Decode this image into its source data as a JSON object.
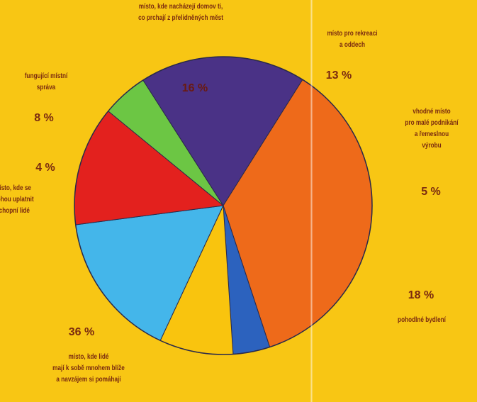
{
  "chart_data": {
    "type": "pie",
    "slices": [
      {
        "value": 16,
        "pct_label": "16 %",
        "color": "#44b6ea",
        "label": [
          "místo, kde nacházejí domov ti,",
          "co prchají z přelidněných měst"
        ]
      },
      {
        "value": 13,
        "pct_label": "13 %",
        "color": "#e3211e",
        "label": [
          "místo pro rekreaci",
          "a oddech"
        ]
      },
      {
        "value": 5,
        "pct_label": "5 %",
        "color": "#6cc644",
        "label": [
          "vhodné místo",
          "pro malé podnikání",
          "a řemeslnou",
          "výrobu"
        ]
      },
      {
        "value": 18,
        "pct_label": "18 %",
        "color": "#4a3286",
        "label": [
          "pohodlné bydlení"
        ]
      },
      {
        "value": 36,
        "pct_label": "36 %",
        "color": "#ee6a1a",
        "label": [
          "místo, kde lidé",
          "mají k sobě mnohem blíže",
          "a navzájem si pomáhají"
        ]
      },
      {
        "value": 4,
        "pct_label": "4 %",
        "color": "#2c62be",
        "label": [
          "místo, kde se",
          "mohou uplatnit",
          "schopní lidé"
        ]
      },
      {
        "value": 8,
        "pct_label": "8 %",
        "color": "#f9c40e",
        "label": [
          "fungující místní",
          "správa"
        ]
      }
    ]
  }
}
